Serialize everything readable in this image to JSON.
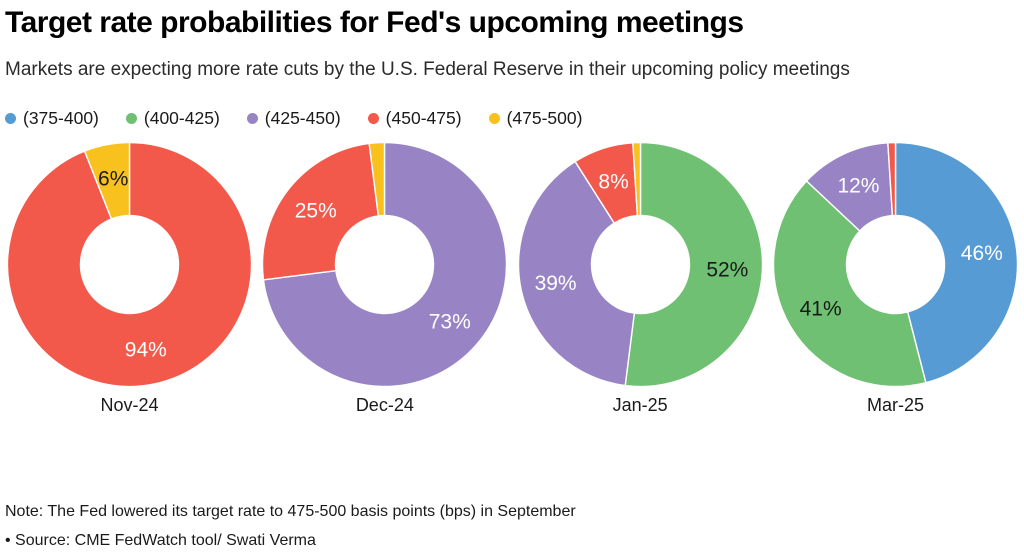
{
  "header": {
    "title": "Target rate probabilities for Fed's upcoming meetings",
    "subtitle": "Markets are expecting more rate cuts by the U.S. Federal Reserve in their upcoming policy meetings"
  },
  "chart_data": {
    "type": "pie",
    "subtype": "donut",
    "unit": "percent",
    "legend_position": "top",
    "colors": {
      "blue": "#579BD4",
      "green": "#6FC072",
      "purple": "#9884C4",
      "red": "#F2594B",
      "yellow": "#F8C11D",
      "label_light": "#FFFFFF",
      "label_dark": "#1A1A1A"
    },
    "legend": [
      {
        "label": "(375-400)",
        "color": "#579BD4"
      },
      {
        "label": "(400-425)",
        "color": "#6FC072"
      },
      {
        "label": "(425-450)",
        "color": "#9884C4"
      },
      {
        "label": "(450-475)",
        "color": "#F2594B"
      },
      {
        "label": "(475-500)",
        "color": "#F8C11D"
      }
    ],
    "donuts": [
      {
        "label": "Nov-24",
        "slices": [
          {
            "name": "(450-475)",
            "value": 94,
            "color": "#F2594B",
            "label": "94%",
            "label_color": "#FFFFFF"
          },
          {
            "name": "(475-500)",
            "value": 6,
            "color": "#F8C11D",
            "label": "6%",
            "label_color": "#1A1A1A"
          }
        ]
      },
      {
        "label": "Dec-24",
        "slices": [
          {
            "name": "(425-450)",
            "value": 73,
            "color": "#9884C4",
            "label": "73%",
            "label_color": "#FFFFFF"
          },
          {
            "name": "(450-475)",
            "value": 25,
            "color": "#F2594B",
            "label": "25%",
            "label_color": "#FFFFFF"
          },
          {
            "name": "(475-500)",
            "value": 2,
            "color": "#F8C11D",
            "label": "",
            "label_color": "#1A1A1A"
          }
        ]
      },
      {
        "label": "Jan-25",
        "slices": [
          {
            "name": "(400-425)",
            "value": 52,
            "color": "#6FC072",
            "label": "52%",
            "label_color": "#1A1A1A"
          },
          {
            "name": "(425-450)",
            "value": 39,
            "color": "#9884C4",
            "label": "39%",
            "label_color": "#FFFFFF"
          },
          {
            "name": "(450-475)",
            "value": 8,
            "color": "#F2594B",
            "label": "8%",
            "label_color": "#FFFFFF"
          },
          {
            "name": "(475-500)",
            "value": 1,
            "color": "#F8C11D",
            "label": "",
            "label_color": "#1A1A1A"
          }
        ]
      },
      {
        "label": "Mar-25",
        "slices": [
          {
            "name": "(375-400)",
            "value": 46,
            "color": "#579BD4",
            "label": "46%",
            "label_color": "#FFFFFF"
          },
          {
            "name": "(400-425)",
            "value": 41,
            "color": "#6FC072",
            "label": "41%",
            "label_color": "#1A1A1A"
          },
          {
            "name": "(425-450)",
            "value": 12,
            "color": "#9884C4",
            "label": "12%",
            "label_color": "#FFFFFF"
          },
          {
            "name": "(450-475)",
            "value": 1,
            "color": "#F2594B",
            "label": "",
            "label_color": "#FFFFFF"
          }
        ]
      }
    ],
    "geometry": {
      "size": 247,
      "outer_radius": 122,
      "inner_radius": 49,
      "label_radius": 87,
      "start_angle_deg": 0,
      "direction": "clockwise"
    }
  },
  "footer": {
    "note": "Note: The Fed lowered its target rate to 475-500 basis points (bps) in September",
    "source": "• Source: CME FedWatch tool/ Swati Verma"
  }
}
